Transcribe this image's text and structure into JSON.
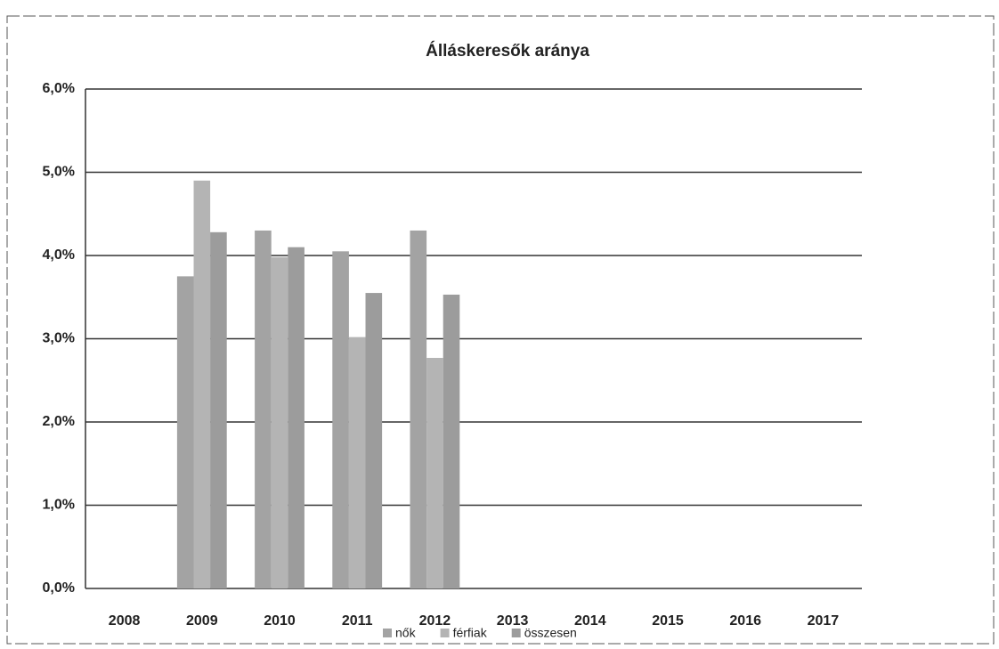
{
  "chart_data": {
    "type": "bar",
    "title": "Álláskeresők aránya",
    "categories": [
      "2008",
      "2009",
      "2010",
      "2011",
      "2012",
      "2013",
      "2014",
      "2015",
      "2016",
      "2017"
    ],
    "series": [
      {
        "name": "nők",
        "color": "#a3a3a3",
        "values": [
          null,
          3.75,
          4.3,
          4.05,
          4.3,
          null,
          null,
          null,
          null,
          null
        ]
      },
      {
        "name": "férfiak",
        "color": "#b4b4b4",
        "values": [
          null,
          4.9,
          3.98,
          3.02,
          2.77,
          null,
          null,
          null,
          null,
          null
        ]
      },
      {
        "name": "összesen",
        "color": "#9c9c9c",
        "values": [
          null,
          4.28,
          4.1,
          3.55,
          3.53,
          null,
          null,
          null,
          null,
          null
        ]
      }
    ],
    "ylim": [
      0,
      6
    ],
    "yticks": [
      {
        "value": 0,
        "label": "0,0%"
      },
      {
        "value": 1,
        "label": "1,0%"
      },
      {
        "value": 2,
        "label": "2,0%"
      },
      {
        "value": 3,
        "label": "3,0%"
      },
      {
        "value": 4,
        "label": "4,0%"
      },
      {
        "value": 5,
        "label": "5,0%"
      },
      {
        "value": 6,
        "label": "6,0%"
      }
    ],
    "grid": true,
    "legend": "bottom"
  }
}
